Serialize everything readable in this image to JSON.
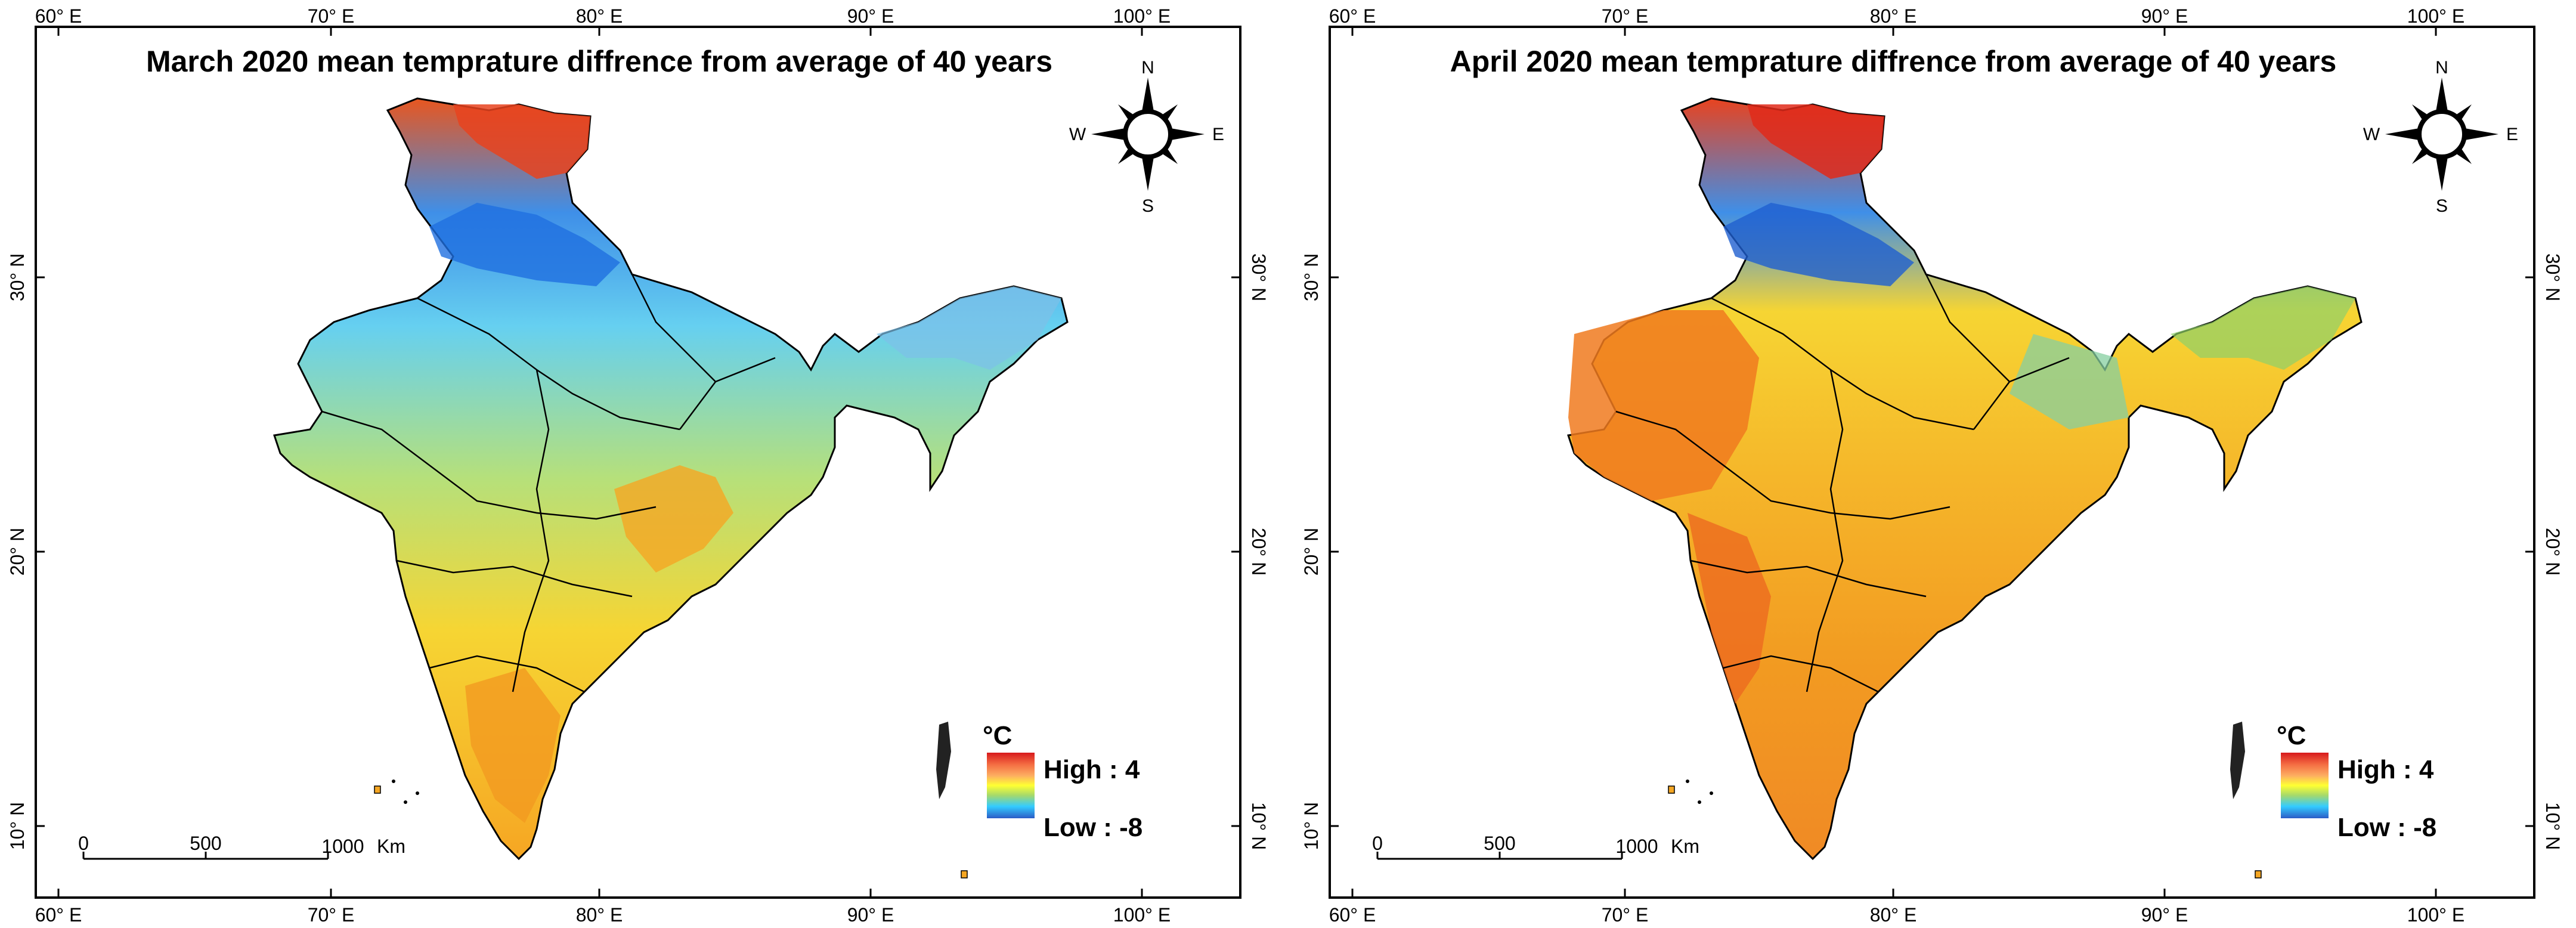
{
  "figure": {
    "panels": [
      {
        "title": "March 2020 mean temprature diffrence from average of 40 years",
        "top_ticks": [
          "60° E",
          "70° E",
          "80° E",
          "90° E",
          "100° E"
        ],
        "bottom_ticks": [
          "60° E",
          "70° E",
          "80° E",
          "90° E",
          "100° E"
        ],
        "left_ticks": [
          "30° N",
          "20° N",
          "10° N"
        ],
        "right_ticks": [
          "30° N",
          "20° N",
          "10° N"
        ],
        "compass": {
          "n": "N",
          "s": "S",
          "e": "E",
          "w": "W"
        },
        "legend": {
          "unit": "°C",
          "high": "High : 4",
          "low": "Low : -8",
          "colors": [
            "#d7191c",
            "#f46d43",
            "#fdae61",
            "#ffff33",
            "#a6d96a",
            "#33ccff",
            "#2b5cc7"
          ]
        },
        "scale_bar": {
          "labels": [
            "0",
            "500",
            "1000"
          ],
          "unit": "Km"
        },
        "dominant_colors": {
          "north": "#3fa9f5",
          "himalaya": "#e83c1f",
          "central": "#f7d533",
          "south": "#f6a623"
        }
      },
      {
        "title": "April 2020 mean temprature diffrence from average of 40 years",
        "top_ticks": [
          "60° E",
          "70° E",
          "80° E",
          "90° E",
          "100° E"
        ],
        "bottom_ticks": [
          "60° E",
          "70° E",
          "80° E",
          "90° E",
          "100° E"
        ],
        "left_ticks": [
          "30° N",
          "20° N",
          "10° N"
        ],
        "right_ticks": [
          "30° N",
          "20° N",
          "10° N"
        ],
        "compass": {
          "n": "N",
          "s": "S",
          "e": "E",
          "w": "W"
        },
        "legend": {
          "unit": "°C",
          "high": "High : 4",
          "low": "Low : -8",
          "colors": [
            "#d7191c",
            "#f46d43",
            "#fdae61",
            "#ffff33",
            "#a6d96a",
            "#33ccff",
            "#2b5cc7"
          ]
        },
        "scale_bar": {
          "labels": [
            "0",
            "500",
            "1000"
          ],
          "unit": "Km"
        },
        "dominant_colors": {
          "north": "#f6c42f",
          "himalaya": "#e83c1f",
          "central": "#f5a623",
          "south": "#f08a25"
        }
      }
    ]
  }
}
